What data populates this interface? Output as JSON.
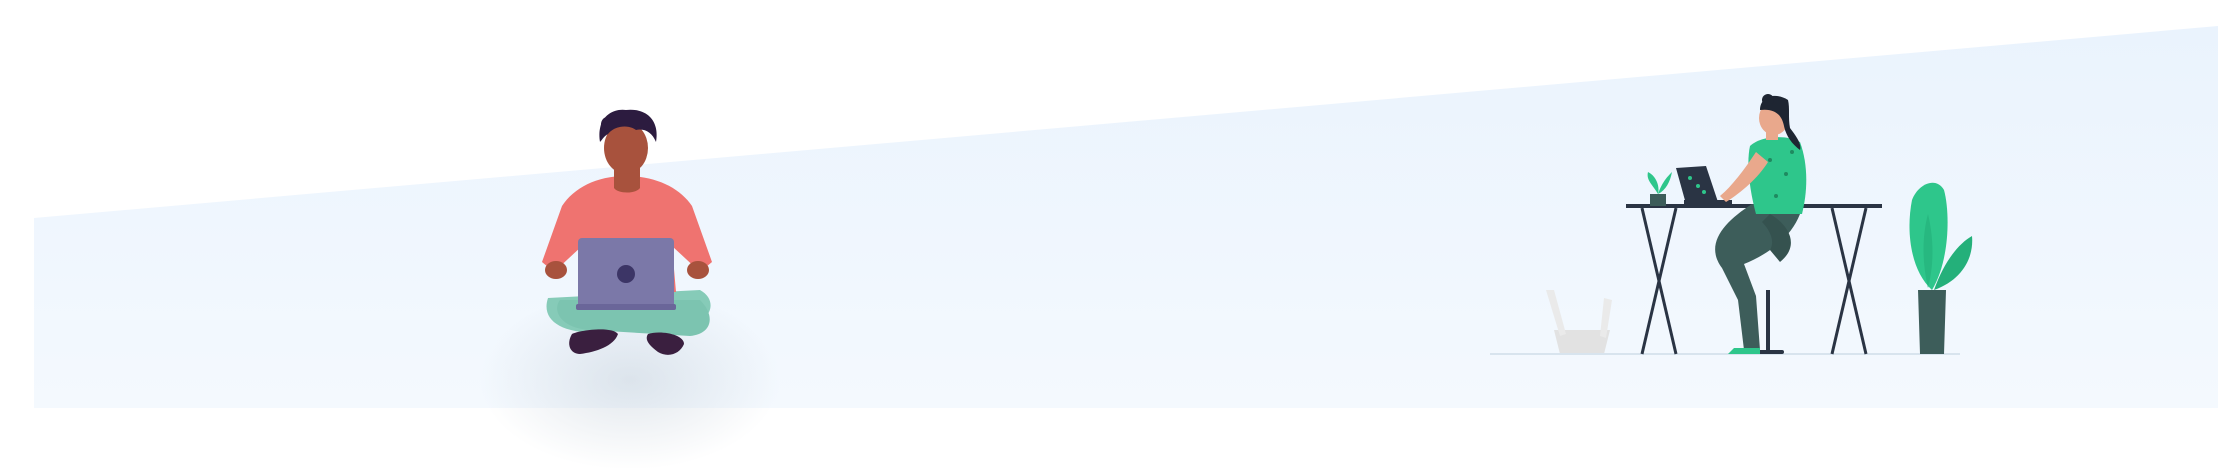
{
  "scene": {
    "background_color": "#ffffff",
    "panel_color": "#edf5fd",
    "illustrations": [
      {
        "name": "person-sitting-with-laptop",
        "colors": {
          "shirt": "#ef7370",
          "pants": "#86cbb8",
          "laptop": "#7b78a8",
          "hair": "#2c1b3f",
          "skin": "#a8523d"
        }
      },
      {
        "name": "person-at-standing-desk",
        "colors": {
          "shirt": "#2ec68b",
          "pants": "#3d5d5a",
          "laptop": "#2a3444",
          "hair": "#1e2532"
        }
      },
      {
        "name": "potted-plant",
        "colors": {
          "leaves": "#2ec68b",
          "pot": "#3d5d5a"
        }
      },
      {
        "name": "waste-basket",
        "colors": {
          "basket": "#e2e2e2"
        }
      }
    ]
  }
}
